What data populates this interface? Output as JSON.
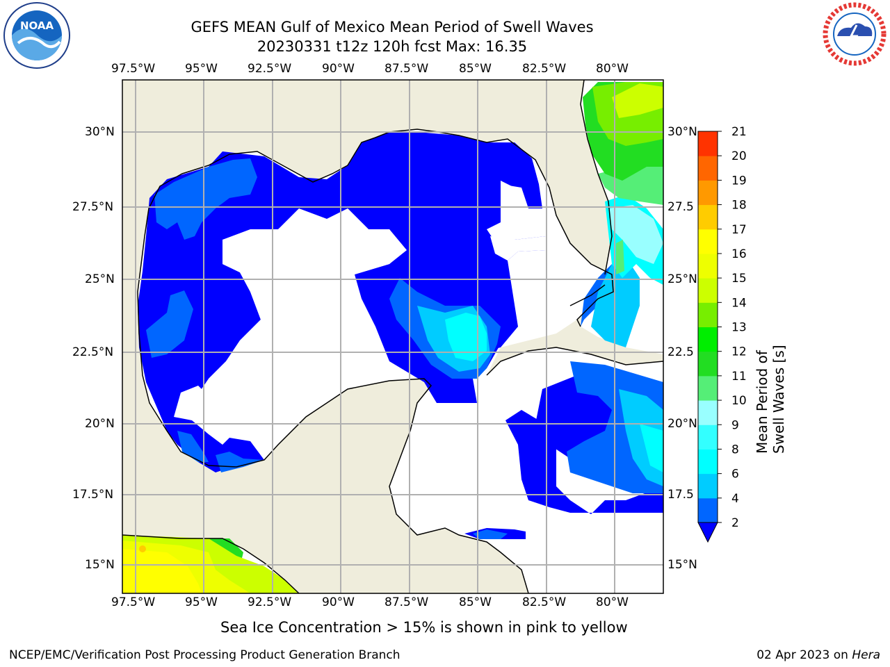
{
  "header": {
    "title_line1": "GEFS MEAN Gulf of Mexico Mean Period of Swell Waves",
    "title_line2": "20230331 t12z 120h fcst   Max: 16.35"
  },
  "logos": {
    "left": "NOAA",
    "right": "NATIONAL WEATHER SERVICE"
  },
  "map": {
    "lon_ticks": [
      "97.5°W",
      "95°W",
      "92.5°W",
      "90°W",
      "87.5°W",
      "85°W",
      "82.5°W",
      "80°W"
    ],
    "lat_ticks_left": [
      "30°N",
      "27.5°N",
      "25°N",
      "22.5°N",
      "20°N",
      "17.5°N",
      "15°N"
    ],
    "lat_ticks_right": [
      "30°N",
      "27.5",
      "25°N",
      "22.5",
      "20°N",
      "17.5",
      "15°N"
    ]
  },
  "colorbar": {
    "label": "Mean Period of Swell Waves [s]",
    "ticks": [
      "2",
      "4",
      "6",
      "8",
      "9",
      "10",
      "11",
      "12",
      "13",
      "14",
      "15",
      "16",
      "17",
      "18",
      "19",
      "20",
      "21"
    ],
    "colors": [
      "#0066ff",
      "#00ccff",
      "#00ffff",
      "#33ffff",
      "#99ffff",
      "#55ee77",
      "#22dd22",
      "#00ee00",
      "#77ee00",
      "#ccff00",
      "#eeff00",
      "#ffff00",
      "#ffcc00",
      "#ff9900",
      "#ff6600",
      "#ff3300",
      "#ff0000"
    ],
    "extend_color": "#0000ff"
  },
  "footer": {
    "note": "Sea Ice Concentration > 15% is shown in pink to yellow",
    "credit": "NCEP/EMC/Verification Post Processing Product Generation Branch",
    "date": "02 Apr 2023 on",
    "machine": "Hera"
  }
}
